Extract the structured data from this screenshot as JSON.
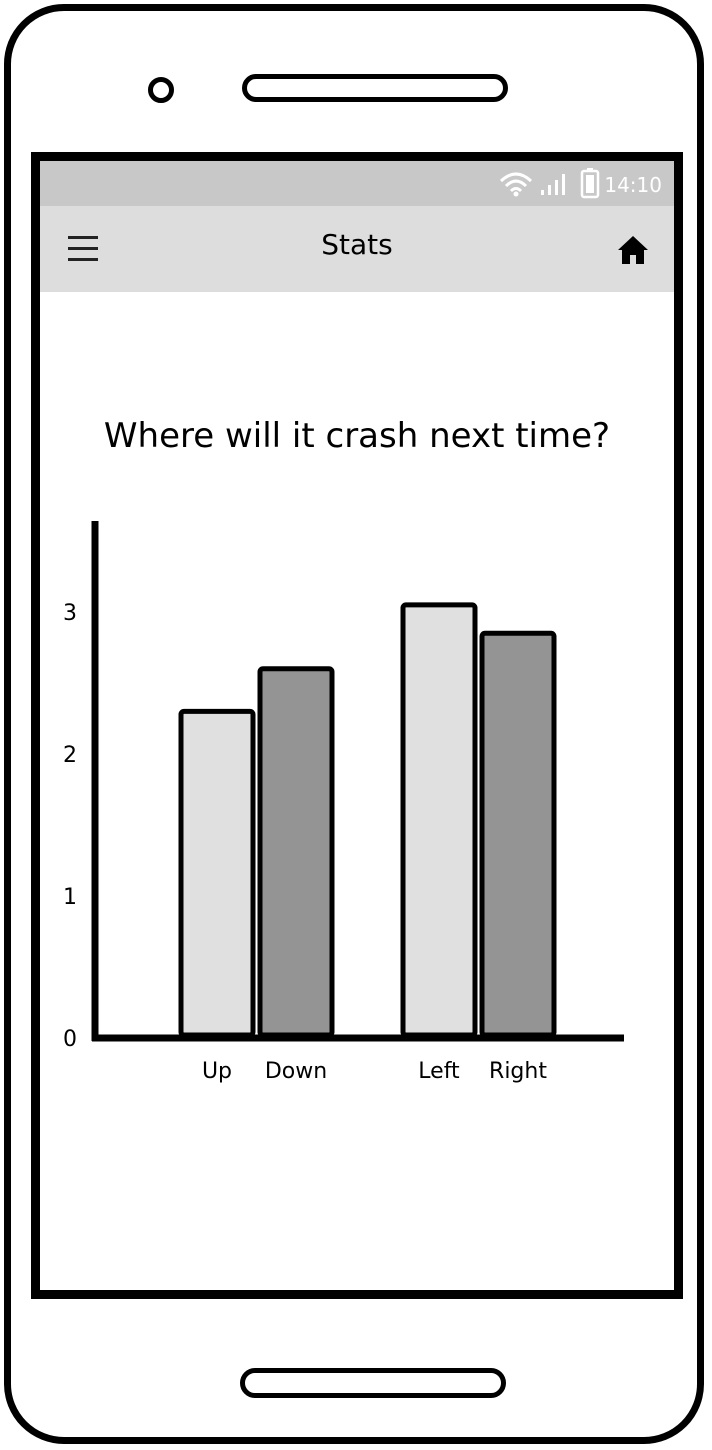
{
  "status": {
    "time": "14:10"
  },
  "appbar": {
    "title": "Stats"
  },
  "icons": {
    "menu": "hamburger-menu-icon",
    "home": "home-icon",
    "wifi": "wifi-icon",
    "signal": "signal-icon",
    "battery": "battery-icon"
  },
  "page": {
    "question": "Where will it crash next time?"
  },
  "chart_data": {
    "type": "bar",
    "categories": [
      "Up",
      "Down",
      "Left",
      "Right"
    ],
    "values": [
      2.3,
      2.6,
      3.05,
      2.85
    ],
    "bar_colors": [
      "#e0e0e0",
      "#949494",
      "#e0e0e0",
      "#949494"
    ],
    "ylim": [
      0,
      3.4
    ],
    "yticks": [
      0,
      1,
      2,
      3
    ],
    "title": "",
    "xlabel": "",
    "ylabel": ""
  }
}
